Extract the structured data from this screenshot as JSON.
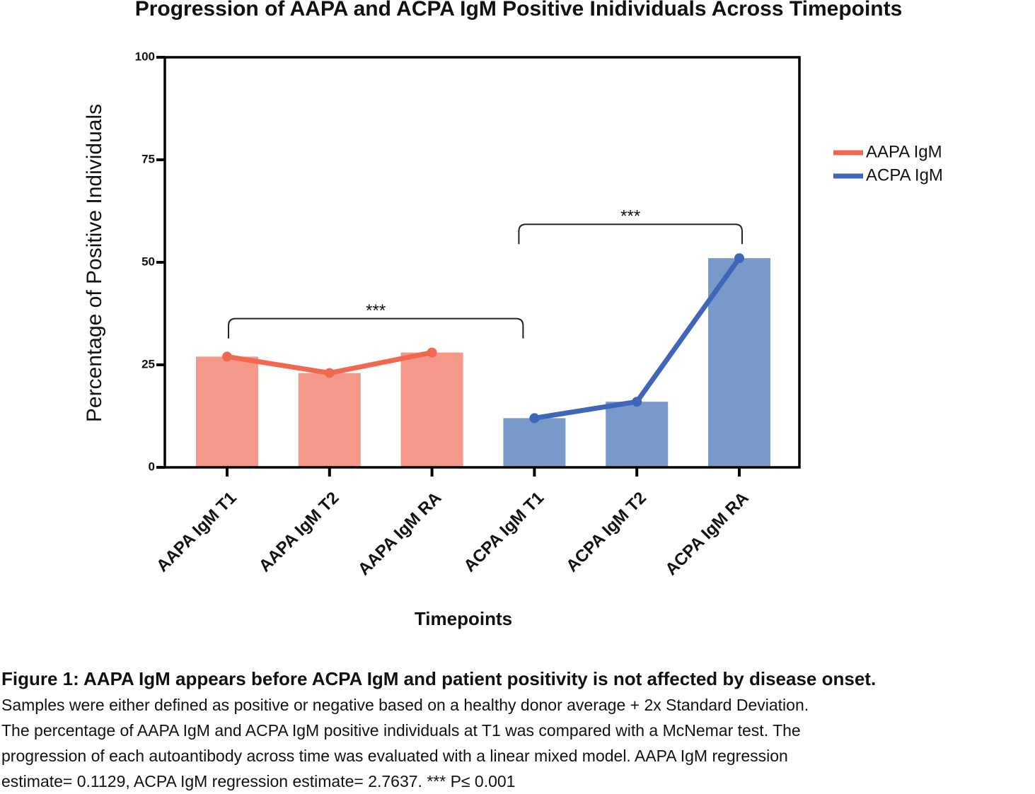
{
  "chart_data": {
    "type": "bar",
    "title": "Progression of AAPA and ACPA IgM Positive Inidividuals Across Timepoints",
    "x_label": "Timepoints",
    "y_label": "Percentage of Positive Individuals",
    "categories": [
      "AAPA IgM T1",
      "AAPA IgM T2",
      "AAPA IgM RA",
      "ACPA IgM T1",
      "ACPA IgM T2",
      "ACPA IgM RA"
    ],
    "values": [
      27,
      23,
      28,
      12,
      16,
      51
    ],
    "bar_colors": [
      "#f4998a",
      "#f4998a",
      "#f4998a",
      "#7899c9",
      "#7899c9",
      "#7899c9"
    ],
    "series": [
      {
        "name": "AAPA IgM",
        "color": "#f0694f",
        "values": [
          27,
          23,
          28,
          null,
          null,
          null
        ]
      },
      {
        "name": "ACPA IgM",
        "color": "#3f66b8",
        "values": [
          null,
          null,
          null,
          12,
          16,
          51
        ]
      }
    ],
    "ylim": [
      0,
      100
    ],
    "yticks": [
      0,
      25,
      50,
      75,
      100
    ],
    "legend": "right",
    "annotations": [
      {
        "text": "***",
        "between": [
          "AAPA IgM T1",
          "ACPA IgM T1"
        ]
      },
      {
        "text": "***",
        "between": [
          "ACPA IgM T1",
          "ACPA IgM RA"
        ]
      }
    ]
  },
  "caption": {
    "title": "Figure 1: AAPA IgM appears before ACPA IgM and patient positivity is not affected by disease onset.",
    "lines": [
      "Samples were either defined as positive or negative based on a healthy donor average + 2x Standard Deviation.",
      "The percentage of AAPA IgM and ACPA IgM positive individuals at T1 was compared with a McNemar test. The",
      "progression of each autoantibody across time was evaluated with a linear mixed model. AAPA IgM regression",
      "estimate= 0.1129, ACPA IgM regression estimate= 2.7637.  *** P≤ 0.001"
    ]
  }
}
